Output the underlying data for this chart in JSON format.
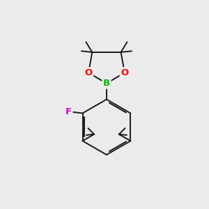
{
  "background_color": "#ebebeb",
  "bond_color": "#1a1a1a",
  "bond_width": 1.4,
  "atom_colors": {
    "B": "#00bb00",
    "O": "#ff0000",
    "F": "#cc00cc",
    "C": "#1a1a1a"
  },
  "figsize": [
    3.0,
    3.0
  ],
  "dpi": 100
}
